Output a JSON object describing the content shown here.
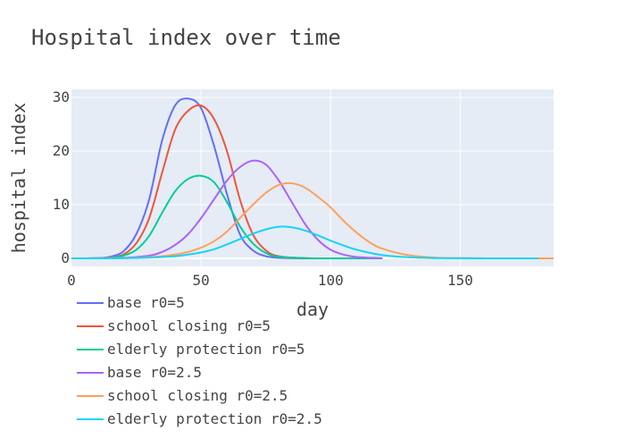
{
  "chart_data": {
    "type": "line",
    "title": "Hospital index over time",
    "xlabel": "day",
    "ylabel": "hospital index",
    "xlim": [
      0,
      186
    ],
    "ylim": [
      -1.5,
      31.5
    ],
    "xticks": [
      0,
      50,
      100,
      150
    ],
    "yticks": [
      0,
      10,
      20,
      30
    ],
    "grid": true,
    "legend_position": "bottom-left",
    "series": [
      {
        "name": "base r0=5",
        "color": "#636efa",
        "x": [
          0,
          10,
          15,
          20,
          25,
          30,
          35,
          40,
          45,
          50,
          55,
          60,
          65,
          70,
          75,
          80,
          90,
          100,
          120
        ],
        "y": [
          0,
          0.05,
          0.3,
          1.3,
          4.5,
          11,
          22,
          28.5,
          29.8,
          28,
          21,
          12,
          4.5,
          1.5,
          0.4,
          0.1,
          0,
          0,
          0
        ]
      },
      {
        "name": "school closing r0=5",
        "color": "#ef553b",
        "x": [
          0,
          10,
          15,
          20,
          25,
          30,
          35,
          40,
          45,
          50,
          55,
          60,
          65,
          70,
          75,
          80,
          90,
          100,
          120
        ],
        "y": [
          0,
          0.02,
          0.15,
          0.7,
          2.8,
          7.5,
          16,
          24,
          27.5,
          28.5,
          26,
          20,
          11,
          4.5,
          1.5,
          0.4,
          0.05,
          0,
          0
        ]
      },
      {
        "name": "elderly protection r0=5",
        "color": "#00cc96",
        "x": [
          0,
          10,
          15,
          20,
          25,
          30,
          35,
          40,
          45,
          50,
          55,
          60,
          65,
          70,
          75,
          80,
          90,
          100,
          120
        ],
        "y": [
          0,
          0.02,
          0.1,
          0.5,
          1.6,
          4.2,
          8.5,
          12.5,
          14.8,
          15.4,
          14.2,
          10.5,
          6,
          2.8,
          1,
          0.3,
          0.05,
          0,
          0
        ]
      },
      {
        "name": "base r0=2.5",
        "color": "#ab63fa",
        "x": [
          0,
          10,
          20,
          30,
          35,
          40,
          45,
          50,
          55,
          60,
          65,
          70,
          75,
          80,
          85,
          90,
          95,
          100,
          105,
          110,
          120
        ],
        "y": [
          0,
          0.02,
          0.1,
          0.5,
          1.2,
          2.5,
          4.5,
          7.5,
          11,
          14.5,
          17,
          18.2,
          17.5,
          14.5,
          10.5,
          6.5,
          3.5,
          1.6,
          0.7,
          0.25,
          0.03
        ]
      },
      {
        "name": "school closing r0=2.5",
        "color": "#ffa15a",
        "x": [
          0,
          20,
          30,
          40,
          45,
          50,
          55,
          60,
          65,
          70,
          75,
          80,
          85,
          90,
          95,
          100,
          105,
          110,
          115,
          120,
          130,
          140,
          150,
          160,
          186
        ],
        "y": [
          0,
          0.05,
          0.2,
          0.7,
          1.2,
          2,
          3.2,
          5,
          7.5,
          10,
          12.2,
          13.7,
          14,
          13.2,
          11.5,
          9.5,
          7,
          4.8,
          3,
          1.8,
          0.6,
          0.15,
          0.05,
          0,
          0
        ]
      },
      {
        "name": "elderly protection r0=2.5",
        "color": "#19d3f3",
        "x": [
          0,
          20,
          30,
          40,
          45,
          50,
          55,
          60,
          65,
          70,
          75,
          80,
          85,
          90,
          95,
          100,
          105,
          110,
          120,
          130,
          140,
          160,
          180
        ],
        "y": [
          0,
          0.03,
          0.15,
          0.4,
          0.7,
          1.1,
          1.7,
          2.6,
          3.6,
          4.6,
          5.4,
          5.9,
          5.8,
          5.2,
          4.3,
          3.3,
          2.4,
          1.6,
          0.6,
          0.2,
          0.05,
          0,
          0
        ]
      }
    ]
  }
}
